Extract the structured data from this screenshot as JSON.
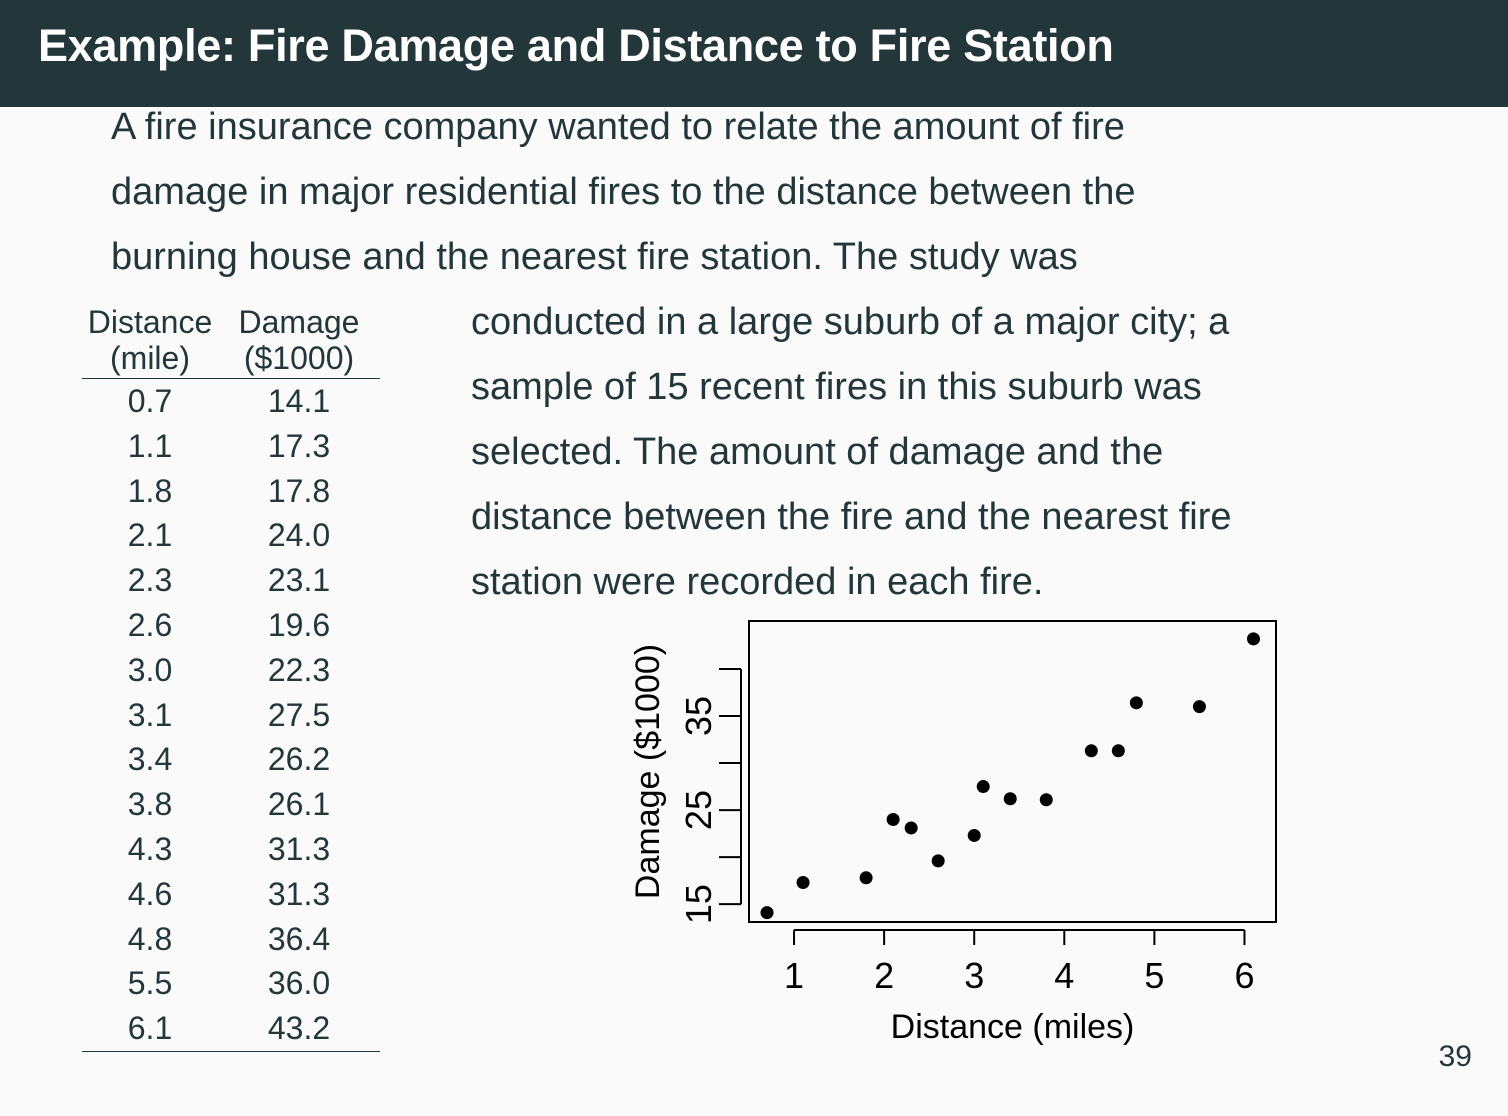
{
  "header": {
    "title": "Example: Fire Damage and Distance to Fire Station"
  },
  "intro_lines": [
    "A fire insurance company wanted to relate the amount of fire",
    "damage in major residential fires to the distance between the",
    "burning house and the nearest fire station. The study was"
  ],
  "side_lines": [
    "conducted in a large suburb of a major city; a",
    "sample of 15 recent fires in this suburb was",
    "selected. The amount of damage and the",
    "distance between the fire and the nearest fire",
    "station were recorded in each fire."
  ],
  "table": {
    "headers": [
      {
        "line1": "Distance",
        "line2": "(mile)"
      },
      {
        "line1": "Damage",
        "line2": "($1000)"
      }
    ],
    "rows": [
      [
        "0.7",
        "14.1"
      ],
      [
        "1.1",
        "17.3"
      ],
      [
        "1.8",
        "17.8"
      ],
      [
        "2.1",
        "24.0"
      ],
      [
        "2.3",
        "23.1"
      ],
      [
        "2.6",
        "19.6"
      ],
      [
        "3.0",
        "22.3"
      ],
      [
        "3.1",
        "27.5"
      ],
      [
        "3.4",
        "26.2"
      ],
      [
        "3.8",
        "26.1"
      ],
      [
        "4.3",
        "31.3"
      ],
      [
        "4.6",
        "31.3"
      ],
      [
        "4.8",
        "36.4"
      ],
      [
        "5.5",
        "36.0"
      ],
      [
        "6.1",
        "43.2"
      ]
    ]
  },
  "chart_data": {
    "type": "scatter",
    "title": "",
    "xlabel": "Distance (miles)",
    "ylabel": "Damage ($1000)",
    "x": [
      0.7,
      1.1,
      1.8,
      2.1,
      2.3,
      2.6,
      3.0,
      3.1,
      3.4,
      3.8,
      4.3,
      4.6,
      4.8,
      5.5,
      6.1
    ],
    "y": [
      14.1,
      17.3,
      17.8,
      24.0,
      23.1,
      19.6,
      22.3,
      27.5,
      26.2,
      26.1,
      31.3,
      31.3,
      36.4,
      36.0,
      43.2
    ],
    "xlim": [
      0.5,
      6.35
    ],
    "ylim": [
      13.1,
      45.1
    ],
    "x_ticks": [
      1,
      2,
      3,
      4,
      5,
      6
    ],
    "y_ticks": [
      15,
      20,
      25,
      30,
      35,
      40
    ],
    "y_tick_labels": {
      "15": "15",
      "25": "25",
      "35": "35"
    },
    "grid": false,
    "legend": "none"
  },
  "page_number": "39"
}
